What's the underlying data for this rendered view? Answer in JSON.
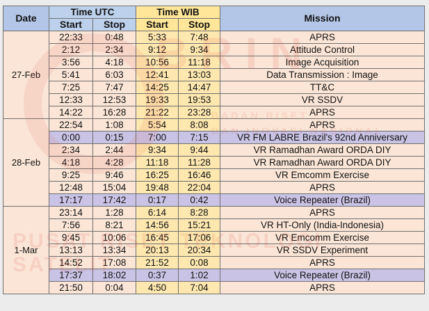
{
  "header": {
    "date": "Date",
    "utc": "Time UTC",
    "wib": "Time WIB",
    "mission": "Mission",
    "start": "Start",
    "stop": "Stop"
  },
  "watermark": {
    "logo": "BRIN",
    "line1": "BADAN RISET",
    "line2": "DAN INOVASI NASIONAL",
    "line3": "PUSAT RISET TEKNOLOGI SATELIT"
  },
  "colors": {
    "header_blue": "#b4c6e7",
    "header_yellow": "#ffe699",
    "row_peach": "#fbe5d6",
    "row_highlight": "#c9c4e6"
  },
  "groups": [
    {
      "date": "27-Feb",
      "rows": [
        {
          "utc_start": "22:33",
          "utc_stop": "0:48",
          "wib_start": "5:33",
          "wib_stop": "7:48",
          "mission": "APRS",
          "hl": false
        },
        {
          "utc_start": "2:12",
          "utc_stop": "2:34",
          "wib_start": "9:12",
          "wib_stop": "9:34",
          "mission": "Attitude Control",
          "hl": false
        },
        {
          "utc_start": "3:56",
          "utc_stop": "4:18",
          "wib_start": "10:56",
          "wib_stop": "11:18",
          "mission": "Image Acquisition",
          "hl": false
        },
        {
          "utc_start": "5:41",
          "utc_stop": "6:03",
          "wib_start": "12:41",
          "wib_stop": "13:03",
          "mission": "Data Transmission : Image",
          "hl": false
        },
        {
          "utc_start": "7:25",
          "utc_stop": "7:47",
          "wib_start": "14:25",
          "wib_stop": "14:47",
          "mission": "TT&C",
          "hl": false
        },
        {
          "utc_start": "12:33",
          "utc_stop": "12:53",
          "wib_start": "19:33",
          "wib_stop": "19:53",
          "mission": "VR SSDV",
          "hl": false
        },
        {
          "utc_start": "14:22",
          "utc_stop": "16:28",
          "wib_start": "21:22",
          "wib_stop": "23:28",
          "mission": "APRS",
          "hl": false
        }
      ]
    },
    {
      "date": "28-Feb",
      "rows": [
        {
          "utc_start": "22:54",
          "utc_stop": "1:08",
          "wib_start": "5:54",
          "wib_stop": "8:08",
          "mission": "APRS",
          "hl": false
        },
        {
          "utc_start": "0:00",
          "utc_stop": "0:15",
          "wib_start": "7:00",
          "wib_stop": "7:15",
          "mission": "VR FM LABRE Brazil's 92nd Anniversary",
          "hl": true
        },
        {
          "utc_start": "2:34",
          "utc_stop": "2:44",
          "wib_start": "9:34",
          "wib_stop": "9:44",
          "mission": "VR Ramadhan Award ORDA DIY",
          "hl": false
        },
        {
          "utc_start": "4:18",
          "utc_stop": "4:28",
          "wib_start": "11:18",
          "wib_stop": "11:28",
          "mission": "VR Ramadhan Award ORDA DIY",
          "hl": false
        },
        {
          "utc_start": "9:25",
          "utc_stop": "9:46",
          "wib_start": "16:25",
          "wib_stop": "16:46",
          "mission": "VR Emcomm Exercise",
          "hl": false
        },
        {
          "utc_start": "12:48",
          "utc_stop": "15:04",
          "wib_start": "19:48",
          "wib_stop": "22:04",
          "mission": "APRS",
          "hl": false
        },
        {
          "utc_start": "17:17",
          "utc_stop": "17:42",
          "wib_start": "0:17",
          "wib_stop": "0:42",
          "mission": "Voice Repeater (Brazil)",
          "hl": true
        }
      ]
    },
    {
      "date": "1-Mar",
      "rows": [
        {
          "utc_start": "23:14",
          "utc_stop": "1:28",
          "wib_start": "6:14",
          "wib_stop": "8:28",
          "mission": "APRS",
          "hl": false
        },
        {
          "utc_start": "7:56",
          "utc_stop": "8:21",
          "wib_start": "14:56",
          "wib_stop": "15:21",
          "mission": "VR HT-Only (India-Indonesia)",
          "hl": false
        },
        {
          "utc_start": "9:45",
          "utc_stop": "10:06",
          "wib_start": "16:45",
          "wib_stop": "17:06",
          "mission": "VR Emcomm Exercise",
          "hl": false
        },
        {
          "utc_start": "13:13",
          "utc_stop": "13:34",
          "wib_start": "20:13",
          "wib_stop": "20:34",
          "mission": "VR SSDV Experiment",
          "hl": false
        },
        {
          "utc_start": "14:52",
          "utc_stop": "17:08",
          "wib_start": "21:52",
          "wib_stop": "0:08",
          "mission": "APRS",
          "hl": false
        },
        {
          "utc_start": "17:37",
          "utc_stop": "18:02",
          "wib_start": "0:37",
          "wib_stop": "1:02",
          "mission": "Voice Repeater (Brazil)",
          "hl": true
        },
        {
          "utc_start": "21:50",
          "utc_stop": "0:04",
          "wib_start": "4:50",
          "wib_stop": "7:04",
          "mission": "APRS",
          "hl": false
        }
      ]
    }
  ]
}
